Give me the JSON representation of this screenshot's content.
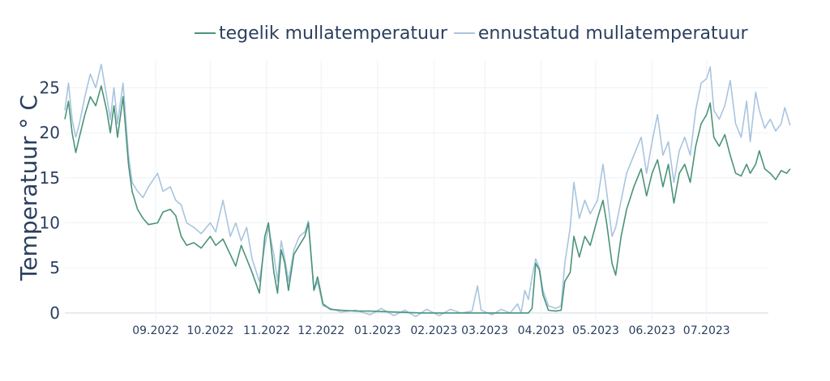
{
  "chart_data": {
    "type": "line",
    "ylabel": "Temperatuur ° C",
    "ylim": [
      -1,
      28
    ],
    "yticks": [
      0,
      5,
      10,
      15,
      20,
      25
    ],
    "xlim": [
      "2022-07-13",
      "2023-08-04"
    ],
    "xticks": [
      {
        "date": "2022-09-01",
        "label": "09.2022"
      },
      {
        "date": "2022-10-01",
        "label": "10.2022"
      },
      {
        "date": "2022-11-01",
        "label": "11.2022"
      },
      {
        "date": "2022-12-01",
        "label": "12.2022"
      },
      {
        "date": "2023-01-01",
        "label": "01.2023"
      },
      {
        "date": "2023-02-01",
        "label": "02.2023"
      },
      {
        "date": "2023-03-01",
        "label": "03.2023"
      },
      {
        "date": "2023-04-01",
        "label": "04.2023"
      },
      {
        "date": "2023-05-01",
        "label": "05.2023"
      },
      {
        "date": "2023-06-01",
        "label": "06.2023"
      },
      {
        "date": "2023-07-01",
        "label": "07.2023"
      }
    ],
    "grid": true,
    "legend_position": "top-right",
    "series": [
      {
        "name": "tegelik mullatemperatuur",
        "color": "#4a9478",
        "points": [
          [
            "2022-07-13",
            21.5
          ],
          [
            "2022-07-15",
            23.5
          ],
          [
            "2022-07-17",
            20.0
          ],
          [
            "2022-07-19",
            17.8
          ],
          [
            "2022-07-21",
            19.5
          ],
          [
            "2022-07-24",
            22.0
          ],
          [
            "2022-07-27",
            24.0
          ],
          [
            "2022-07-30",
            23.0
          ],
          [
            "2022-08-02",
            25.2
          ],
          [
            "2022-08-05",
            22.5
          ],
          [
            "2022-08-07",
            20.0
          ],
          [
            "2022-08-09",
            23.0
          ],
          [
            "2022-08-11",
            19.5
          ],
          [
            "2022-08-14",
            24.0
          ],
          [
            "2022-08-17",
            16.5
          ],
          [
            "2022-08-19",
            13.5
          ],
          [
            "2022-08-22",
            11.5
          ],
          [
            "2022-08-25",
            10.5
          ],
          [
            "2022-08-28",
            9.8
          ],
          [
            "2022-09-02",
            10.0
          ],
          [
            "2022-09-05",
            11.2
          ],
          [
            "2022-09-09",
            11.5
          ],
          [
            "2022-09-12",
            10.8
          ],
          [
            "2022-09-15",
            8.5
          ],
          [
            "2022-09-18",
            7.5
          ],
          [
            "2022-09-22",
            7.8
          ],
          [
            "2022-09-26",
            7.2
          ],
          [
            "2022-10-01",
            8.5
          ],
          [
            "2022-10-04",
            7.5
          ],
          [
            "2022-10-08",
            8.2
          ],
          [
            "2022-10-12",
            6.5
          ],
          [
            "2022-10-15",
            5.2
          ],
          [
            "2022-10-18",
            7.5
          ],
          [
            "2022-10-21",
            6.0
          ],
          [
            "2022-10-24",
            4.5
          ],
          [
            "2022-10-28",
            2.2
          ],
          [
            "2022-10-31",
            8.5
          ],
          [
            "2022-11-02",
            10.0
          ],
          [
            "2022-11-05",
            4.5
          ],
          [
            "2022-11-07",
            2.2
          ],
          [
            "2022-11-09",
            7.0
          ],
          [
            "2022-11-11",
            5.5
          ],
          [
            "2022-11-13",
            2.5
          ],
          [
            "2022-11-16",
            6.5
          ],
          [
            "2022-11-19",
            7.5
          ],
          [
            "2022-11-22",
            8.5
          ],
          [
            "2022-11-24",
            10.0
          ],
          [
            "2022-11-27",
            2.5
          ],
          [
            "2022-11-29",
            4.0
          ],
          [
            "2022-12-02",
            1.0
          ],
          [
            "2022-12-06",
            0.4
          ],
          [
            "2022-12-12",
            0.3
          ],
          [
            "2022-12-20",
            0.2
          ],
          [
            "2022-12-28",
            0.2
          ],
          [
            "2023-01-10",
            0.1
          ],
          [
            "2023-01-25",
            0.0
          ],
          [
            "2023-02-10",
            0.0
          ],
          [
            "2023-02-25",
            0.0
          ],
          [
            "2023-03-10",
            0.0
          ],
          [
            "2023-03-25",
            0.0
          ],
          [
            "2023-03-27",
            0.5
          ],
          [
            "2023-03-29",
            5.5
          ],
          [
            "2023-03-31",
            4.8
          ],
          [
            "2023-04-02",
            2.0
          ],
          [
            "2023-04-05",
            0.3
          ],
          [
            "2023-04-09",
            0.2
          ],
          [
            "2023-04-12",
            0.3
          ],
          [
            "2023-04-14",
            3.5
          ],
          [
            "2023-04-17",
            4.5
          ],
          [
            "2023-04-19",
            8.5
          ],
          [
            "2023-04-22",
            6.2
          ],
          [
            "2023-04-25",
            8.5
          ],
          [
            "2023-04-28",
            7.5
          ],
          [
            "2023-05-02",
            10.5
          ],
          [
            "2023-05-05",
            12.5
          ],
          [
            "2023-05-07",
            10.0
          ],
          [
            "2023-05-10",
            5.5
          ],
          [
            "2023-05-12",
            4.2
          ],
          [
            "2023-05-15",
            8.5
          ],
          [
            "2023-05-18",
            11.5
          ],
          [
            "2023-05-22",
            14.0
          ],
          [
            "2023-05-26",
            16.0
          ],
          [
            "2023-05-29",
            13.0
          ],
          [
            "2023-06-01",
            15.5
          ],
          [
            "2023-06-04",
            17.0
          ],
          [
            "2023-06-07",
            14.0
          ],
          [
            "2023-06-10",
            16.5
          ],
          [
            "2023-06-13",
            12.2
          ],
          [
            "2023-06-16",
            15.5
          ],
          [
            "2023-06-19",
            16.5
          ],
          [
            "2023-06-22",
            14.5
          ],
          [
            "2023-06-25",
            18.5
          ],
          [
            "2023-06-28",
            21.0
          ],
          [
            "2023-07-01",
            22.0
          ],
          [
            "2023-07-03",
            23.3
          ],
          [
            "2023-07-05",
            19.5
          ],
          [
            "2023-07-08",
            18.5
          ],
          [
            "2023-07-11",
            19.8
          ],
          [
            "2023-07-14",
            17.5
          ],
          [
            "2023-07-17",
            15.5
          ],
          [
            "2023-07-20",
            15.2
          ],
          [
            "2023-07-23",
            16.5
          ],
          [
            "2023-07-25",
            15.5
          ],
          [
            "2023-07-28",
            16.5
          ],
          [
            "2023-07-30",
            18.0
          ],
          [
            "2023-08-02",
            16.0
          ],
          [
            "2023-08-05",
            15.5
          ],
          [
            "2023-08-08",
            14.8
          ],
          [
            "2023-08-11",
            15.8
          ],
          [
            "2023-08-14",
            15.5
          ],
          [
            "2023-08-16",
            16.0
          ]
        ]
      },
      {
        "name": "ennustatud mullatemperatuur",
        "color": "#a9c4e0",
        "points": [
          [
            "2022-07-13",
            22.5
          ],
          [
            "2022-07-15",
            25.5
          ],
          [
            "2022-07-17",
            21.5
          ],
          [
            "2022-07-19",
            19.5
          ],
          [
            "2022-07-21",
            21.0
          ],
          [
            "2022-07-24",
            24.0
          ],
          [
            "2022-07-27",
            26.5
          ],
          [
            "2022-07-30",
            25.0
          ],
          [
            "2022-08-02",
            27.6
          ],
          [
            "2022-08-05",
            24.0
          ],
          [
            "2022-08-07",
            21.5
          ],
          [
            "2022-08-09",
            25.0
          ],
          [
            "2022-08-11",
            21.0
          ],
          [
            "2022-08-14",
            25.5
          ],
          [
            "2022-08-17",
            17.5
          ],
          [
            "2022-08-19",
            14.5
          ],
          [
            "2022-08-22",
            13.5
          ],
          [
            "2022-08-25",
            12.8
          ],
          [
            "2022-08-28",
            14.0
          ],
          [
            "2022-09-02",
            15.5
          ],
          [
            "2022-09-05",
            13.5
          ],
          [
            "2022-09-09",
            14.0
          ],
          [
            "2022-09-12",
            12.5
          ],
          [
            "2022-09-15",
            12.0
          ],
          [
            "2022-09-18",
            10.0
          ],
          [
            "2022-09-22",
            9.5
          ],
          [
            "2022-09-26",
            8.8
          ],
          [
            "2022-10-01",
            10.0
          ],
          [
            "2022-10-04",
            9.0
          ],
          [
            "2022-10-08",
            12.5
          ],
          [
            "2022-10-12",
            8.5
          ],
          [
            "2022-10-15",
            10.0
          ],
          [
            "2022-10-18",
            8.0
          ],
          [
            "2022-10-21",
            9.5
          ],
          [
            "2022-10-24",
            6.0
          ],
          [
            "2022-10-28",
            3.5
          ],
          [
            "2022-10-31",
            7.5
          ],
          [
            "2022-11-02",
            9.5
          ],
          [
            "2022-11-05",
            6.5
          ],
          [
            "2022-11-07",
            3.5
          ],
          [
            "2022-11-09",
            8.0
          ],
          [
            "2022-11-11",
            6.0
          ],
          [
            "2022-11-13",
            3.5
          ],
          [
            "2022-11-16",
            7.0
          ],
          [
            "2022-11-19",
            8.5
          ],
          [
            "2022-11-22",
            9.0
          ],
          [
            "2022-11-24",
            10.2
          ],
          [
            "2022-11-27",
            2.5
          ],
          [
            "2022-11-29",
            3.5
          ],
          [
            "2022-12-02",
            0.8
          ],
          [
            "2022-12-06",
            0.5
          ],
          [
            "2022-12-12",
            0.1
          ],
          [
            "2022-12-20",
            0.3
          ],
          [
            "2022-12-28",
            -0.2
          ],
          [
            "2023-01-03",
            0.5
          ],
          [
            "2023-01-10",
            -0.3
          ],
          [
            "2023-01-16",
            0.3
          ],
          [
            "2023-01-22",
            -0.4
          ],
          [
            "2023-01-28",
            0.4
          ],
          [
            "2023-02-04",
            -0.3
          ],
          [
            "2023-02-10",
            0.4
          ],
          [
            "2023-02-16",
            0.0
          ],
          [
            "2023-02-22",
            0.2
          ],
          [
            "2023-02-25",
            3.0
          ],
          [
            "2023-02-27",
            0.3
          ],
          [
            "2023-03-05",
            -0.2
          ],
          [
            "2023-03-10",
            0.4
          ],
          [
            "2023-03-15",
            0.0
          ],
          [
            "2023-03-19",
            1.0
          ],
          [
            "2023-03-21",
            0.0
          ],
          [
            "2023-03-23",
            2.5
          ],
          [
            "2023-03-25",
            1.5
          ],
          [
            "2023-03-27",
            4.0
          ],
          [
            "2023-03-29",
            6.0
          ],
          [
            "2023-03-31",
            5.0
          ],
          [
            "2023-04-02",
            2.5
          ],
          [
            "2023-04-05",
            0.8
          ],
          [
            "2023-04-09",
            0.5
          ],
          [
            "2023-04-12",
            0.8
          ],
          [
            "2023-04-14",
            5.5
          ],
          [
            "2023-04-17",
            9.5
          ],
          [
            "2023-04-19",
            14.5
          ],
          [
            "2023-04-22",
            10.5
          ],
          [
            "2023-04-25",
            12.5
          ],
          [
            "2023-04-28",
            11.0
          ],
          [
            "2023-05-02",
            12.5
          ],
          [
            "2023-05-05",
            16.5
          ],
          [
            "2023-05-07",
            13.5
          ],
          [
            "2023-05-10",
            8.5
          ],
          [
            "2023-05-12",
            9.5
          ],
          [
            "2023-05-15",
            12.5
          ],
          [
            "2023-05-18",
            15.5
          ],
          [
            "2023-05-22",
            17.5
          ],
          [
            "2023-05-26",
            19.5
          ],
          [
            "2023-05-29",
            15.5
          ],
          [
            "2023-06-01",
            19.0
          ],
          [
            "2023-06-04",
            22.0
          ],
          [
            "2023-06-07",
            17.5
          ],
          [
            "2023-06-10",
            19.0
          ],
          [
            "2023-06-13",
            14.5
          ],
          [
            "2023-06-16",
            18.0
          ],
          [
            "2023-06-19",
            19.5
          ],
          [
            "2023-06-22",
            17.5
          ],
          [
            "2023-06-25",
            22.5
          ],
          [
            "2023-06-28",
            25.5
          ],
          [
            "2023-07-01",
            26.0
          ],
          [
            "2023-07-03",
            27.3
          ],
          [
            "2023-07-05",
            22.5
          ],
          [
            "2023-07-08",
            21.5
          ],
          [
            "2023-07-11",
            23.0
          ],
          [
            "2023-07-14",
            25.8
          ],
          [
            "2023-07-17",
            21.0
          ],
          [
            "2023-07-20",
            19.5
          ],
          [
            "2023-07-23",
            23.5
          ],
          [
            "2023-07-25",
            19.0
          ],
          [
            "2023-07-28",
            24.5
          ],
          [
            "2023-07-30",
            22.5
          ],
          [
            "2023-08-02",
            20.5
          ],
          [
            "2023-08-05",
            21.5
          ],
          [
            "2023-08-08",
            20.2
          ],
          [
            "2023-08-11",
            21.0
          ],
          [
            "2023-08-13",
            22.8
          ],
          [
            "2023-08-16",
            20.8
          ]
        ]
      }
    ]
  }
}
